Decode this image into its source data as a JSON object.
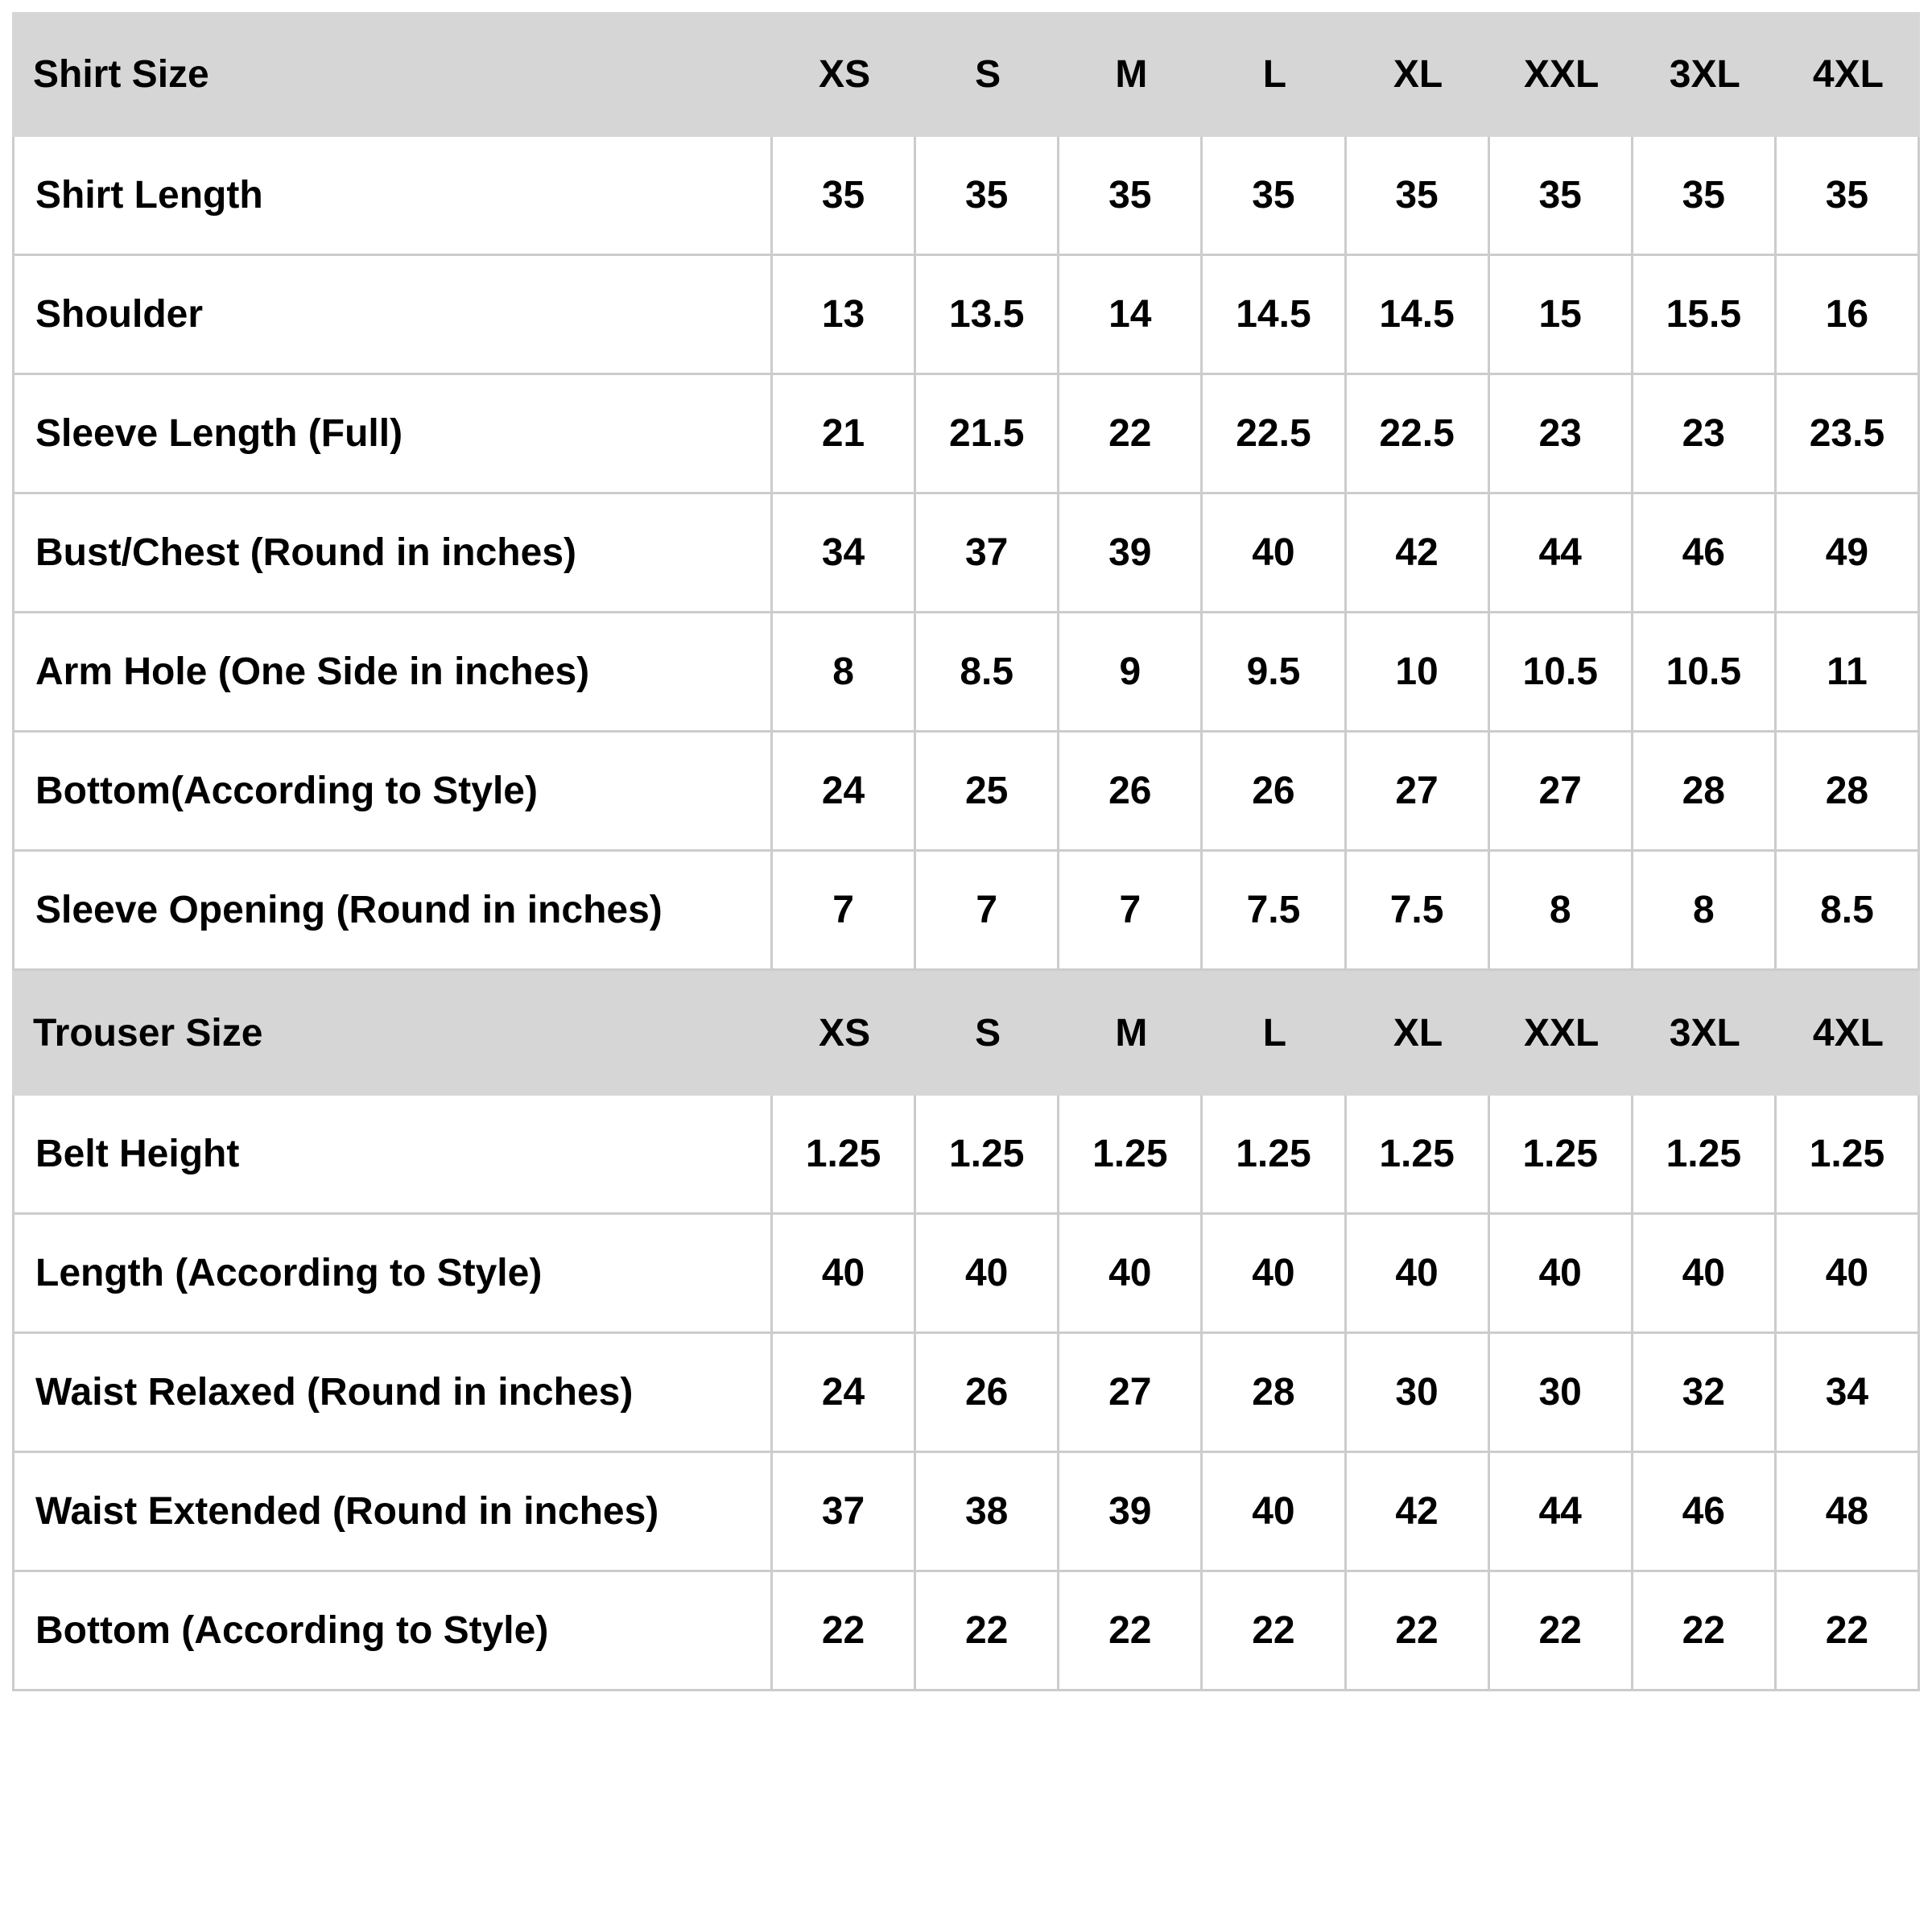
{
  "page": {
    "background": "#ffffff",
    "header_bg": "#d6d6d6",
    "border_color": "#cccccc",
    "text_color": "#000000"
  },
  "table": {
    "size_columns": [
      "XS",
      "S",
      "M",
      "L",
      "XL",
      "XXL",
      "3XL",
      "4XL"
    ],
    "shirt": {
      "title": "Shirt Size",
      "rows": [
        {
          "label": "Shirt Length",
          "values": [
            "35",
            "35",
            "35",
            "35",
            "35",
            "35",
            "35",
            "35"
          ]
        },
        {
          "label": "Shoulder",
          "values": [
            "13",
            "13.5",
            "14",
            "14.5",
            "14.5",
            "15",
            "15.5",
            "16"
          ]
        },
        {
          "label": "Sleeve Length (Full)",
          "values": [
            "21",
            "21.5",
            "22",
            "22.5",
            "22.5",
            "23",
            "23",
            "23.5"
          ]
        },
        {
          "label": "Bust/Chest (Round in inches)",
          "values": [
            "34",
            "37",
            "39",
            "40",
            "42",
            "44",
            "46",
            "49"
          ]
        },
        {
          "label": "Arm Hole (One Side in inches)",
          "values": [
            "8",
            "8.5",
            "9",
            "9.5",
            "10",
            "10.5",
            "10.5",
            "11"
          ]
        },
        {
          "label": "Bottom(According to Style)",
          "values": [
            "24",
            "25",
            "26",
            "26",
            "27",
            "27",
            "28",
            "28"
          ]
        },
        {
          "label": "Sleeve Opening (Round in inches)",
          "values": [
            "7",
            "7",
            "7",
            "7.5",
            "7.5",
            "8",
            "8",
            "8.5"
          ]
        }
      ]
    },
    "trouser": {
      "title": "Trouser Size",
      "rows": [
        {
          "label": "Belt Height",
          "values": [
            "1.25",
            "1.25",
            "1.25",
            "1.25",
            "1.25",
            "1.25",
            "1.25",
            "1.25"
          ]
        },
        {
          "label": "Length (According to Style)",
          "values": [
            "40",
            "40",
            "40",
            "40",
            "40",
            "40",
            "40",
            "40"
          ]
        },
        {
          "label": "Waist Relaxed (Round in inches)",
          "values": [
            "24",
            "26",
            "27",
            "28",
            "30",
            "30",
            "32",
            "34"
          ]
        },
        {
          "label": "Waist Extended (Round in inches)",
          "values": [
            "37",
            "38",
            "39",
            "40",
            "42",
            "44",
            "46",
            "48"
          ]
        },
        {
          "label": "Bottom (According to Style)",
          "values": [
            "22",
            "22",
            "22",
            "22",
            "22",
            "22",
            "22",
            "22"
          ]
        }
      ]
    }
  }
}
